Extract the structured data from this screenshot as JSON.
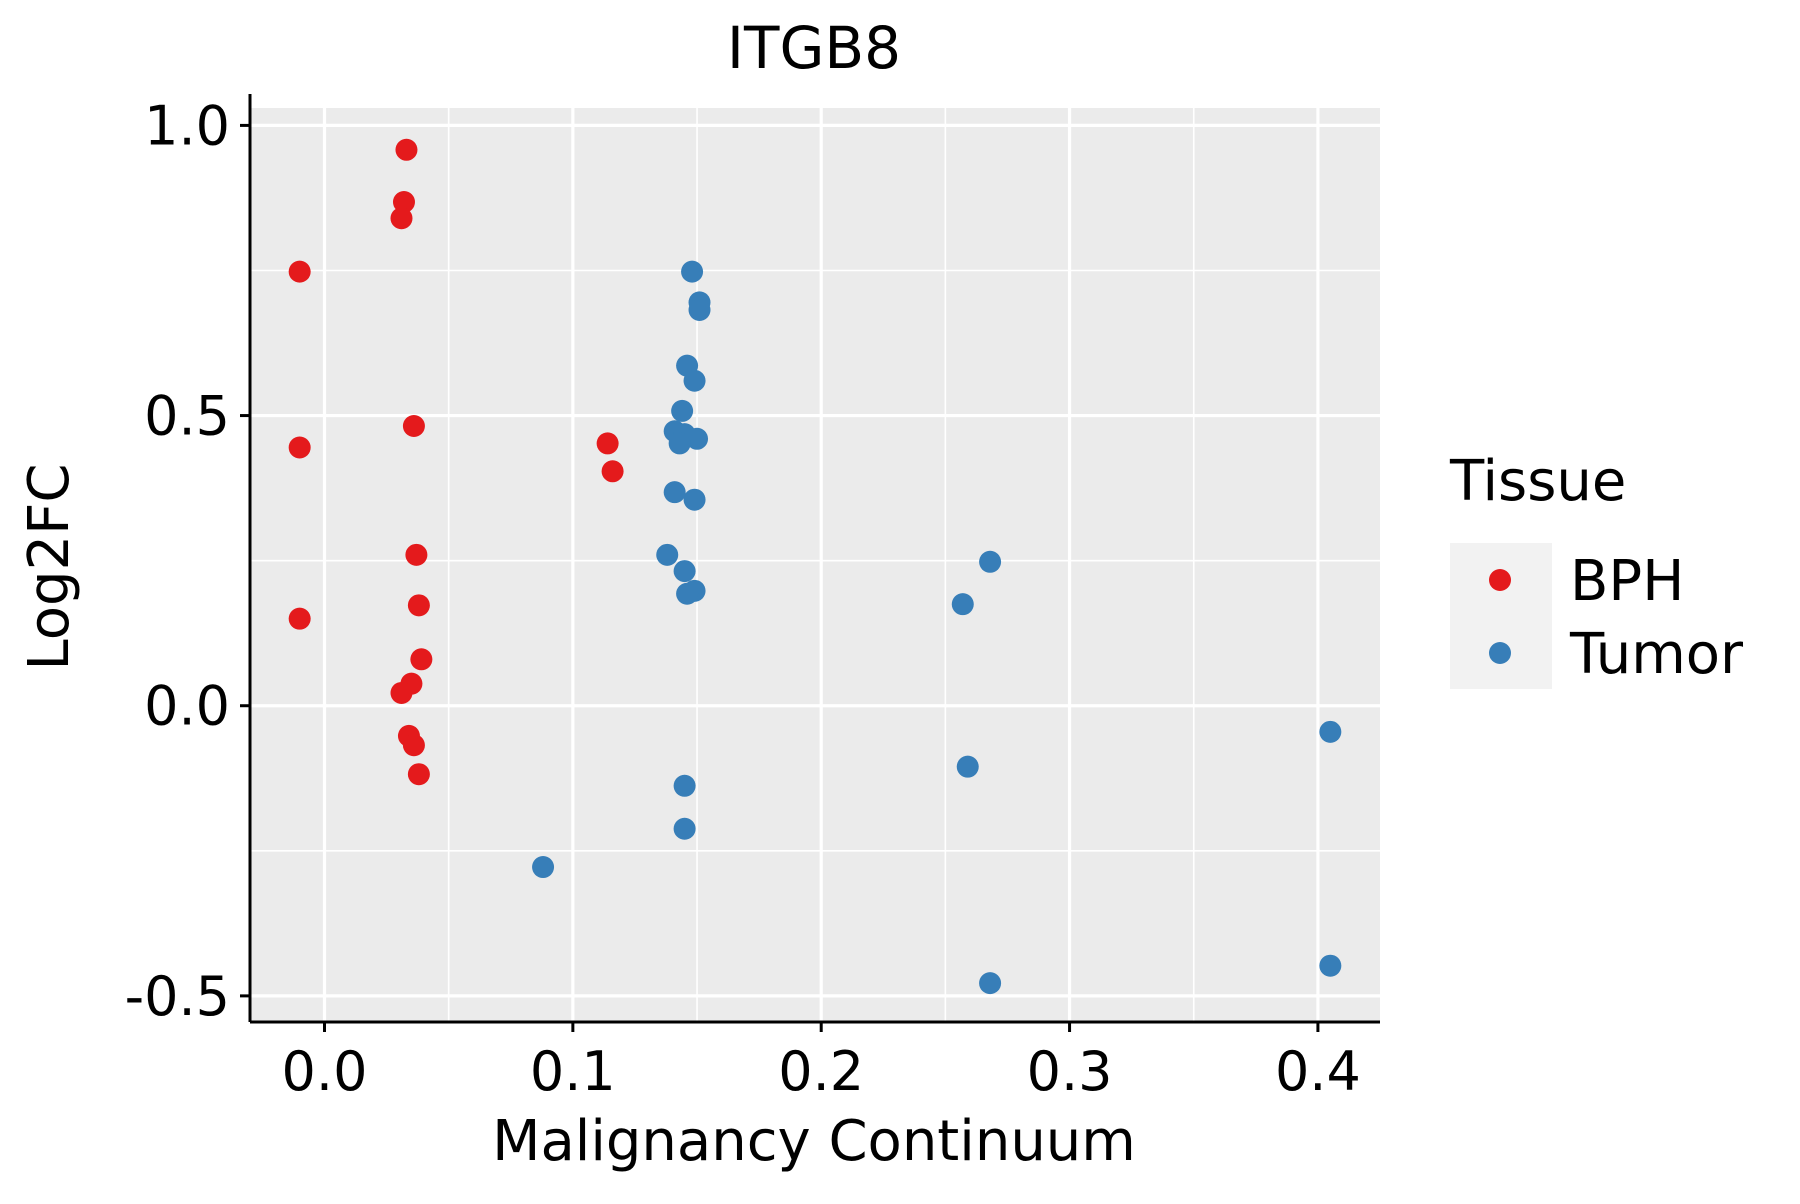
{
  "chart_data": {
    "type": "scatter",
    "title": "ITGB8",
    "xlabel": "Malignancy Continuum",
    "ylabel": "Log2FC",
    "xlim": [
      -0.03,
      0.425
    ],
    "ylim": [
      -0.545,
      1.03
    ],
    "x_ticks": [
      0.0,
      0.1,
      0.2,
      0.3,
      0.4
    ],
    "x_tick_labels": [
      "0.0",
      "0.1",
      "0.2",
      "0.3",
      "0.4"
    ],
    "y_ticks": [
      -0.5,
      0.0,
      0.5,
      1.0
    ],
    "y_tick_labels": [
      "-0.5",
      "0.0",
      "0.5",
      "1.0"
    ],
    "x_minor_gridlines": [
      0.05,
      0.15,
      0.25,
      0.35
    ],
    "y_minor_gridlines": [
      -0.25,
      0.25,
      0.75
    ],
    "grid": true,
    "panel_background": "#EBEBEB",
    "grid_color": "#FFFFFF",
    "legend": {
      "title": "Tissue",
      "position": "right",
      "entries": [
        {
          "label": "BPH",
          "color": "#E41A1C"
        },
        {
          "label": "Tumor",
          "color": "#377EB8"
        }
      ]
    },
    "series": [
      {
        "name": "BPH",
        "color": "#E41A1C",
        "points": [
          {
            "x": 0.033,
            "y": 0.958
          },
          {
            "x": 0.032,
            "y": 0.868
          },
          {
            "x": 0.031,
            "y": 0.84
          },
          {
            "x": -0.01,
            "y": 0.748
          },
          {
            "x": -0.01,
            "y": 0.445
          },
          {
            "x": 0.036,
            "y": 0.482
          },
          {
            "x": 0.037,
            "y": 0.26
          },
          {
            "x": 0.038,
            "y": 0.173
          },
          {
            "x": -0.01,
            "y": 0.15
          },
          {
            "x": 0.039,
            "y": 0.08
          },
          {
            "x": 0.035,
            "y": 0.038
          },
          {
            "x": 0.031,
            "y": 0.022
          },
          {
            "x": 0.034,
            "y": -0.052
          },
          {
            "x": 0.036,
            "y": -0.068
          },
          {
            "x": 0.038,
            "y": -0.118
          },
          {
            "x": 0.114,
            "y": 0.452
          },
          {
            "x": 0.116,
            "y": 0.404
          }
        ]
      },
      {
        "name": "Tumor",
        "color": "#377EB8",
        "points": [
          {
            "x": 0.148,
            "y": 0.748
          },
          {
            "x": 0.151,
            "y": 0.695
          },
          {
            "x": 0.151,
            "y": 0.682
          },
          {
            "x": 0.146,
            "y": 0.586
          },
          {
            "x": 0.149,
            "y": 0.56
          },
          {
            "x": 0.144,
            "y": 0.508
          },
          {
            "x": 0.141,
            "y": 0.473
          },
          {
            "x": 0.145,
            "y": 0.468
          },
          {
            "x": 0.15,
            "y": 0.46
          },
          {
            "x": 0.143,
            "y": 0.452
          },
          {
            "x": 0.141,
            "y": 0.368
          },
          {
            "x": 0.149,
            "y": 0.355
          },
          {
            "x": 0.138,
            "y": 0.26
          },
          {
            "x": 0.145,
            "y": 0.232
          },
          {
            "x": 0.149,
            "y": 0.198
          },
          {
            "x": 0.146,
            "y": 0.193
          },
          {
            "x": 0.268,
            "y": 0.248
          },
          {
            "x": 0.257,
            "y": 0.175
          },
          {
            "x": 0.145,
            "y": -0.138
          },
          {
            "x": 0.145,
            "y": -0.212
          },
          {
            "x": 0.088,
            "y": -0.278
          },
          {
            "x": 0.259,
            "y": -0.105
          },
          {
            "x": 0.268,
            "y": -0.478
          },
          {
            "x": 0.405,
            "y": -0.045
          },
          {
            "x": 0.405,
            "y": -0.448
          }
        ]
      }
    ]
  }
}
